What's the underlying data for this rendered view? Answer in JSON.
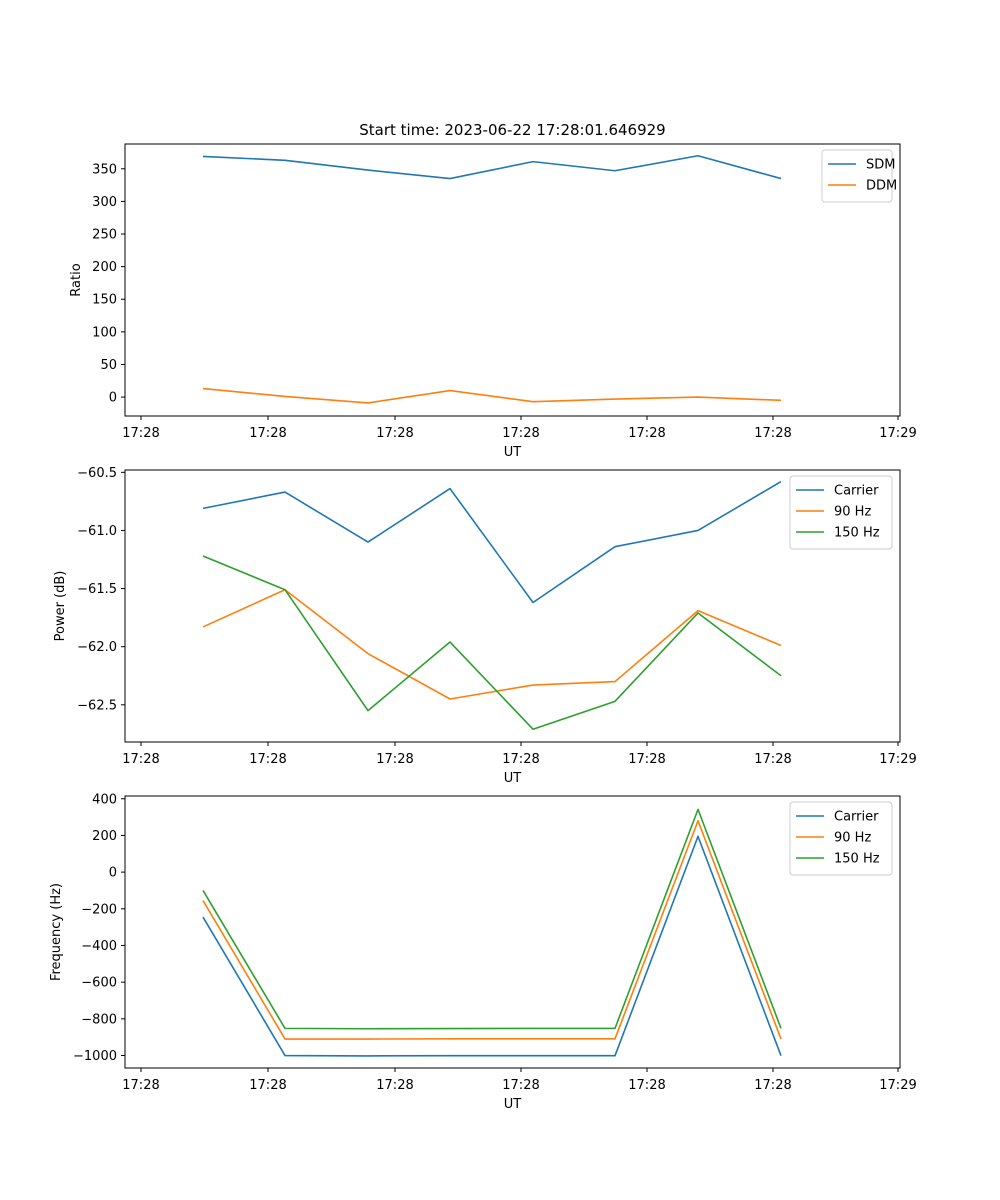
{
  "title": "Start time: 2023-06-22 17:28:01.646929",
  "colors": {
    "blue": "#1f77b4",
    "orange": "#ff7f0e",
    "green": "#2ca02c"
  },
  "chart_data": [
    {
      "type": "line",
      "title": "Start time: 2023-06-22 17:28:01.646929",
      "xlabel": "UT",
      "ylabel": "Ratio",
      "xtick_labels": [
        "17:28",
        "17:28",
        "17:28",
        "17:28",
        "17:28",
        "17:28",
        "17:29"
      ],
      "yticks": [
        0,
        50,
        100,
        150,
        200,
        250,
        300,
        350
      ],
      "ylim": [
        -29,
        388
      ],
      "legend_placement": "top-right",
      "grid": false,
      "x_index": [
        1,
        2,
        3,
        4,
        5,
        6,
        7,
        8
      ],
      "series": [
        {
          "name": "SDM",
          "color": "#1f77b4",
          "values": [
            369,
            363,
            348,
            335,
            361,
            347,
            370,
            335
          ]
        },
        {
          "name": "DDM",
          "color": "#ff7f0e",
          "values": [
            13,
            1,
            -9,
            10,
            -7,
            -3,
            0,
            -5
          ]
        }
      ]
    },
    {
      "type": "line",
      "title": "",
      "xlabel": "UT",
      "ylabel": "Power (dB)",
      "xtick_labels": [
        "17:28",
        "17:28",
        "17:28",
        "17:28",
        "17:28",
        "17:28",
        "17:29"
      ],
      "yticks": [
        -62.5,
        -62.0,
        -61.5,
        -61.0,
        -60.5
      ],
      "ytick_labels": [
        "−62.5",
        "−62.0",
        "−61.5",
        "−61.0",
        "−60.5"
      ],
      "ylim": [
        -62.82,
        -60.48
      ],
      "legend_placement": "top-right",
      "grid": false,
      "x_index": [
        1,
        2,
        3,
        4,
        5,
        6,
        7,
        8
      ],
      "series": [
        {
          "name": "Carrier",
          "color": "#1f77b4",
          "values": [
            -60.81,
            -60.67,
            -61.1,
            -60.64,
            -61.62,
            -61.14,
            -61.0,
            -60.58
          ]
        },
        {
          "name": "90 Hz",
          "color": "#ff7f0e",
          "values": [
            -61.83,
            -61.51,
            -62.06,
            -62.45,
            -62.33,
            -62.3,
            -61.69,
            -61.99
          ]
        },
        {
          "name": "150 Hz",
          "color": "#2ca02c",
          "values": [
            -61.22,
            -61.51,
            -62.55,
            -61.96,
            -62.71,
            -62.47,
            -61.71,
            -62.25
          ]
        }
      ]
    },
    {
      "type": "line",
      "title": "",
      "xlabel": "UT",
      "ylabel": "Frequency (Hz)",
      "xtick_labels": [
        "17:28",
        "17:28",
        "17:28",
        "17:28",
        "17:28",
        "17:28",
        "17:29"
      ],
      "yticks": [
        -1000,
        -800,
        -600,
        -400,
        -200,
        0,
        200,
        400
      ],
      "ytick_labels": [
        "−1000",
        "−800",
        "−600",
        "−400",
        "−200",
        "0",
        "200",
        "400"
      ],
      "ylim": [
        -1068,
        415
      ],
      "legend_placement": "top-right",
      "grid": false,
      "x_index": [
        1,
        2,
        3,
        4,
        5,
        6,
        7,
        8
      ],
      "series": [
        {
          "name": "Carrier",
          "color": "#1f77b4",
          "values": [
            -245,
            -1000,
            -1002,
            -1001,
            -1001,
            -1001,
            195,
            -1001
          ]
        },
        {
          "name": "90 Hz",
          "color": "#ff7f0e",
          "values": [
            -155,
            -910,
            -910,
            -909,
            -909,
            -909,
            280,
            -910
          ]
        },
        {
          "name": "150 Hz",
          "color": "#2ca02c",
          "values": [
            -100,
            -852,
            -854,
            -853,
            -852,
            -852,
            342,
            -852
          ]
        }
      ]
    }
  ]
}
